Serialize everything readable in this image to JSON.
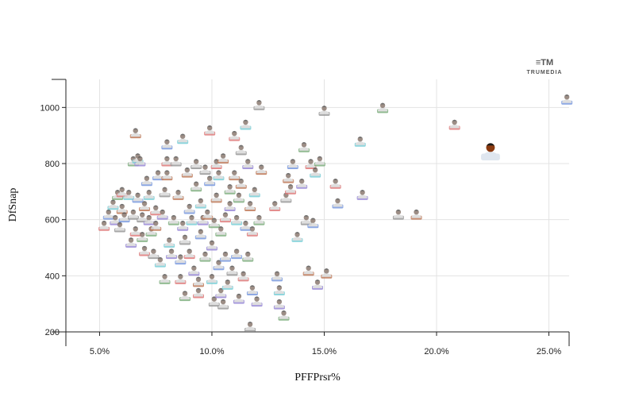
{
  "brand": {
    "logo_mark": "≡TM",
    "name": "TRUMEDIA"
  },
  "chart_data": {
    "type": "scatter",
    "title": "",
    "xlabel": "PFFPrsr%",
    "ylabel": "DfSnap",
    "xlim": [
      3.5,
      25.9
    ],
    "ylim": [
      200,
      1100
    ],
    "x_ticks": [
      5,
      10,
      15,
      20,
      25
    ],
    "x_tick_labels": [
      "5.0%",
      "10.0%",
      "15.0%",
      "20.0%",
      "25.0%"
    ],
    "y_ticks": [
      200,
      400,
      600,
      800,
      1000
    ],
    "y_tick_labels": [
      "200",
      "400",
      "600",
      "800",
      "1000"
    ],
    "grid": true,
    "legend": "none",
    "marker": "player-headshot",
    "highlight_color": "#8a3a10",
    "palette": [
      "#e07b7b",
      "#7b9be0",
      "#7bd0d8",
      "#9a8ad8",
      "#7fb07f",
      "#9a9a9a",
      "#c07b5a"
    ],
    "highlighted": {
      "x": 22.4,
      "y": 845
    },
    "points": [
      {
        "x": 5.2,
        "y": 580
      },
      {
        "x": 5.4,
        "y": 620
      },
      {
        "x": 5.6,
        "y": 655
      },
      {
        "x": 5.7,
        "y": 600
      },
      {
        "x": 5.8,
        "y": 690
      },
      {
        "x": 5.9,
        "y": 575
      },
      {
        "x": 6.0,
        "y": 640
      },
      {
        "x": 6.0,
        "y": 700
      },
      {
        "x": 6.1,
        "y": 610
      },
      {
        "x": 6.3,
        "y": 690
      },
      {
        "x": 6.4,
        "y": 520
      },
      {
        "x": 6.5,
        "y": 810
      },
      {
        "x": 6.5,
        "y": 620
      },
      {
        "x": 6.6,
        "y": 910
      },
      {
        "x": 6.6,
        "y": 560
      },
      {
        "x": 6.7,
        "y": 680
      },
      {
        "x": 6.7,
        "y": 820
      },
      {
        "x": 6.8,
        "y": 810
      },
      {
        "x": 6.9,
        "y": 540
      },
      {
        "x": 6.9,
        "y": 610
      },
      {
        "x": 7.0,
        "y": 650
      },
      {
        "x": 7.0,
        "y": 490
      },
      {
        "x": 7.1,
        "y": 740
      },
      {
        "x": 7.2,
        "y": 690
      },
      {
        "x": 7.2,
        "y": 600
      },
      {
        "x": 7.3,
        "y": 560
      },
      {
        "x": 7.4,
        "y": 480
      },
      {
        "x": 7.5,
        "y": 580
      },
      {
        "x": 7.5,
        "y": 635
      },
      {
        "x": 7.6,
        "y": 760
      },
      {
        "x": 7.7,
        "y": 450
      },
      {
        "x": 7.8,
        "y": 620
      },
      {
        "x": 7.9,
        "y": 390
      },
      {
        "x": 7.9,
        "y": 700
      },
      {
        "x": 8.0,
        "y": 760
      },
      {
        "x": 8.0,
        "y": 810
      },
      {
        "x": 8.0,
        "y": 870
      },
      {
        "x": 8.1,
        "y": 520
      },
      {
        "x": 8.2,
        "y": 480
      },
      {
        "x": 8.3,
        "y": 600
      },
      {
        "x": 8.4,
        "y": 810
      },
      {
        "x": 8.5,
        "y": 690
      },
      {
        "x": 8.6,
        "y": 390
      },
      {
        "x": 8.6,
        "y": 460
      },
      {
        "x": 8.7,
        "y": 890
      },
      {
        "x": 8.7,
        "y": 580
      },
      {
        "x": 8.8,
        "y": 330
      },
      {
        "x": 8.8,
        "y": 530
      },
      {
        "x": 8.9,
        "y": 770
      },
      {
        "x": 9.0,
        "y": 480
      },
      {
        "x": 9.0,
        "y": 640
      },
      {
        "x": 9.1,
        "y": 600
      },
      {
        "x": 9.2,
        "y": 420
      },
      {
        "x": 9.3,
        "y": 720
      },
      {
        "x": 9.3,
        "y": 800
      },
      {
        "x": 9.4,
        "y": 380
      },
      {
        "x": 9.4,
        "y": 340
      },
      {
        "x": 9.5,
        "y": 550
      },
      {
        "x": 9.5,
        "y": 660
      },
      {
        "x": 9.6,
        "y": 600
      },
      {
        "x": 9.7,
        "y": 470
      },
      {
        "x": 9.7,
        "y": 780
      },
      {
        "x": 9.8,
        "y": 620
      },
      {
        "x": 9.9,
        "y": 920
      },
      {
        "x": 9.9,
        "y": 740
      },
      {
        "x": 10.0,
        "y": 390
      },
      {
        "x": 10.0,
        "y": 510
      },
      {
        "x": 10.1,
        "y": 590
      },
      {
        "x": 10.1,
        "y": 310
      },
      {
        "x": 10.2,
        "y": 680
      },
      {
        "x": 10.2,
        "y": 800
      },
      {
        "x": 10.3,
        "y": 440
      },
      {
        "x": 10.3,
        "y": 760
      },
      {
        "x": 10.4,
        "y": 340
      },
      {
        "x": 10.4,
        "y": 560
      },
      {
        "x": 10.5,
        "y": 300
      },
      {
        "x": 10.5,
        "y": 820
      },
      {
        "x": 10.6,
        "y": 610
      },
      {
        "x": 10.6,
        "y": 470
      },
      {
        "x": 10.7,
        "y": 370
      },
      {
        "x": 10.8,
        "y": 650
      },
      {
        "x": 10.8,
        "y": 710
      },
      {
        "x": 10.9,
        "y": 420
      },
      {
        "x": 11.0,
        "y": 760
      },
      {
        "x": 11.0,
        "y": 900
      },
      {
        "x": 11.1,
        "y": 480
      },
      {
        "x": 11.1,
        "y": 600
      },
      {
        "x": 11.2,
        "y": 320
      },
      {
        "x": 11.2,
        "y": 680
      },
      {
        "x": 11.3,
        "y": 850
      },
      {
        "x": 11.3,
        "y": 730
      },
      {
        "x": 11.4,
        "y": 400
      },
      {
        "x": 11.5,
        "y": 580
      },
      {
        "x": 11.5,
        "y": 940
      },
      {
        "x": 11.6,
        "y": 800
      },
      {
        "x": 11.6,
        "y": 470
      },
      {
        "x": 11.7,
        "y": 220
      },
      {
        "x": 11.7,
        "y": 650
      },
      {
        "x": 11.8,
        "y": 560
      },
      {
        "x": 11.8,
        "y": 350
      },
      {
        "x": 11.9,
        "y": 700
      },
      {
        "x": 12.0,
        "y": 310
      },
      {
        "x": 12.1,
        "y": 600
      },
      {
        "x": 12.1,
        "y": 1010
      },
      {
        "x": 12.2,
        "y": 780
      },
      {
        "x": 12.8,
        "y": 650
      },
      {
        "x": 12.9,
        "y": 400
      },
      {
        "x": 13.0,
        "y": 350
      },
      {
        "x": 13.0,
        "y": 300
      },
      {
        "x": 13.2,
        "y": 260
      },
      {
        "x": 13.3,
        "y": 680
      },
      {
        "x": 13.4,
        "y": 750
      },
      {
        "x": 13.5,
        "y": 710
      },
      {
        "x": 13.6,
        "y": 800
      },
      {
        "x": 13.8,
        "y": 540
      },
      {
        "x": 14.0,
        "y": 730
      },
      {
        "x": 14.1,
        "y": 860
      },
      {
        "x": 14.2,
        "y": 600
      },
      {
        "x": 14.3,
        "y": 420
      },
      {
        "x": 14.4,
        "y": 800
      },
      {
        "x": 14.5,
        "y": 590
      },
      {
        "x": 14.6,
        "y": 770
      },
      {
        "x": 14.7,
        "y": 370
      },
      {
        "x": 14.8,
        "y": 810
      },
      {
        "x": 15.0,
        "y": 990
      },
      {
        "x": 15.1,
        "y": 410
      },
      {
        "x": 15.5,
        "y": 730
      },
      {
        "x": 15.6,
        "y": 660
      },
      {
        "x": 16.6,
        "y": 880
      },
      {
        "x": 16.7,
        "y": 690
      },
      {
        "x": 17.6,
        "y": 1000
      },
      {
        "x": 18.3,
        "y": 620
      },
      {
        "x": 19.1,
        "y": 620
      },
      {
        "x": 20.8,
        "y": 940
      },
      {
        "x": 25.8,
        "y": 1030
      }
    ]
  }
}
